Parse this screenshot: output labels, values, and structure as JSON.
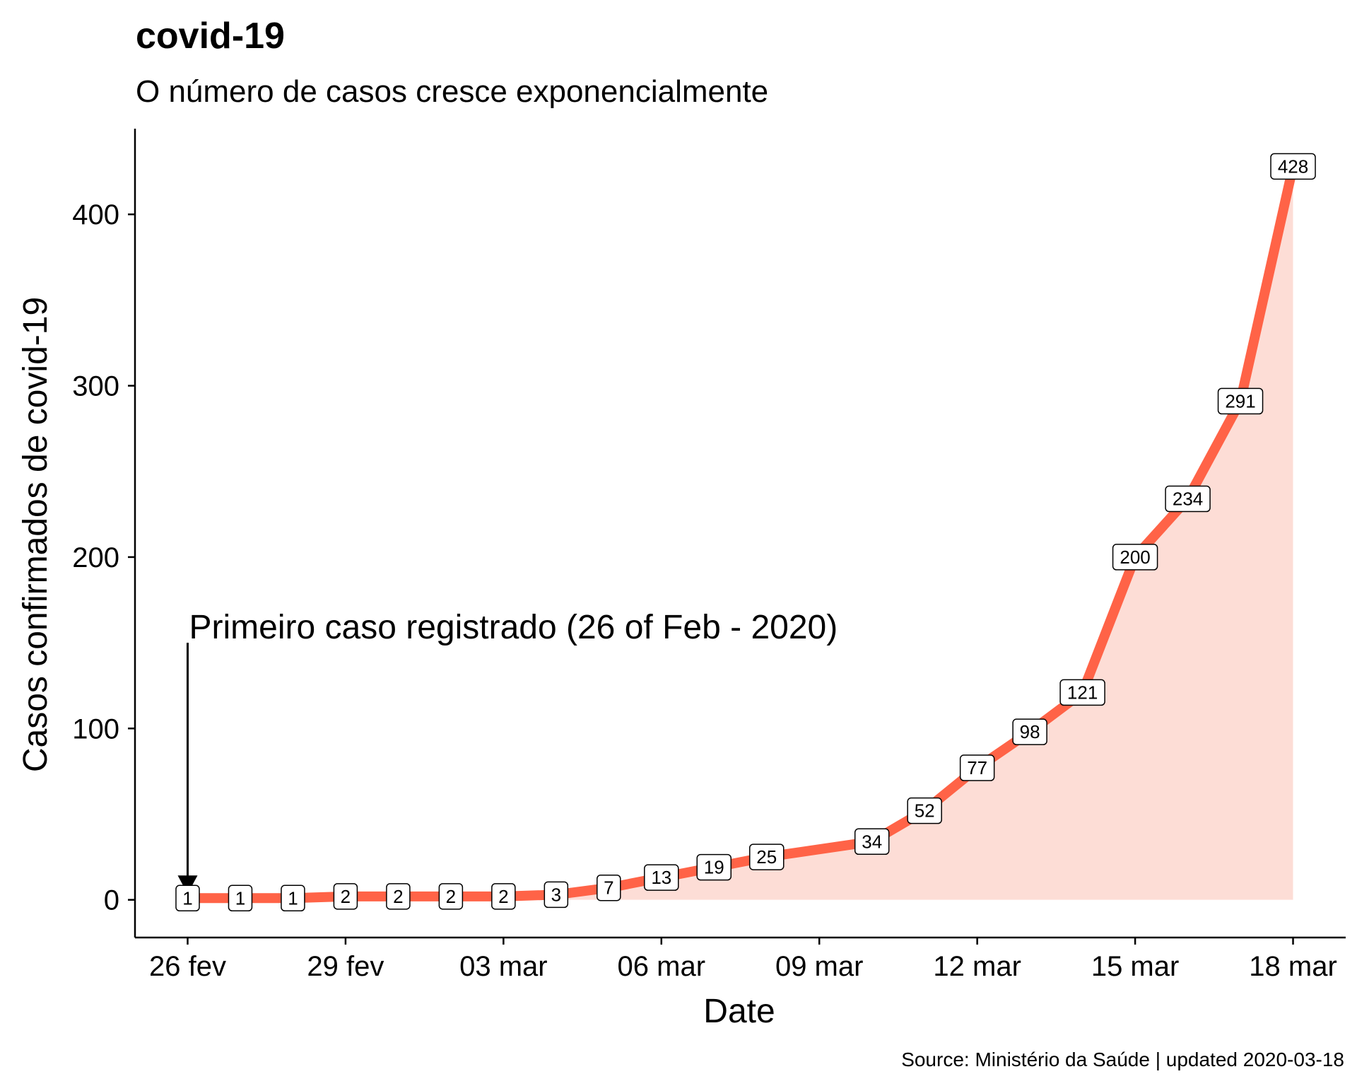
{
  "chart_data": {
    "type": "area",
    "title": "covid-19",
    "subtitle": "O número de casos cresce exponencialmente",
    "xlabel": "Date",
    "ylabel": "Casos confirmados de covid-19",
    "caption": "Source: Ministério da Saúde | updated 2020-03-18",
    "x": [
      "2020-02-26",
      "2020-02-27",
      "2020-02-28",
      "2020-02-29",
      "2020-03-01",
      "2020-03-02",
      "2020-03-03",
      "2020-03-04",
      "2020-03-05",
      "2020-03-06",
      "2020-03-07",
      "2020-03-08",
      "2020-03-10",
      "2020-03-11",
      "2020-03-12",
      "2020-03-13",
      "2020-03-14",
      "2020-03-15",
      "2020-03-16",
      "2020-03-17",
      "2020-03-18"
    ],
    "values": [
      1,
      1,
      1,
      2,
      2,
      2,
      2,
      3,
      7,
      13,
      19,
      25,
      34,
      52,
      77,
      98,
      121,
      200,
      234,
      291,
      428
    ],
    "data_labels": [
      "1",
      "1",
      "1",
      "2",
      "2",
      "2",
      "2",
      "3",
      "7",
      "13",
      "19",
      "25",
      "34",
      "52",
      "77",
      "98",
      "121",
      "200",
      "234",
      "291",
      "428"
    ],
    "x_ticks": [
      {
        "date": "2020-02-26",
        "label": "26 fev"
      },
      {
        "date": "2020-02-29",
        "label": "29 fev"
      },
      {
        "date": "2020-03-03",
        "label": "03 mar"
      },
      {
        "date": "2020-03-06",
        "label": "06 mar"
      },
      {
        "date": "2020-03-09",
        "label": "09 mar"
      },
      {
        "date": "2020-03-12",
        "label": "12 mar"
      },
      {
        "date": "2020-03-15",
        "label": "15 mar"
      },
      {
        "date": "2020-03-18",
        "label": "18 mar"
      }
    ],
    "y_ticks": [
      0,
      100,
      200,
      300,
      400
    ],
    "xlim": [
      "2020-02-25",
      "2020-03-19"
    ],
    "ylim": [
      -22,
      450
    ],
    "grid": false,
    "line_color": "#FF6347",
    "area_color": "#FDDDD6",
    "annotation": {
      "text": "Primeiro caso registrado (26 of Feb - 2020)",
      "date": "2020-02-26",
      "y_start": 150,
      "y_end": 1
    }
  }
}
